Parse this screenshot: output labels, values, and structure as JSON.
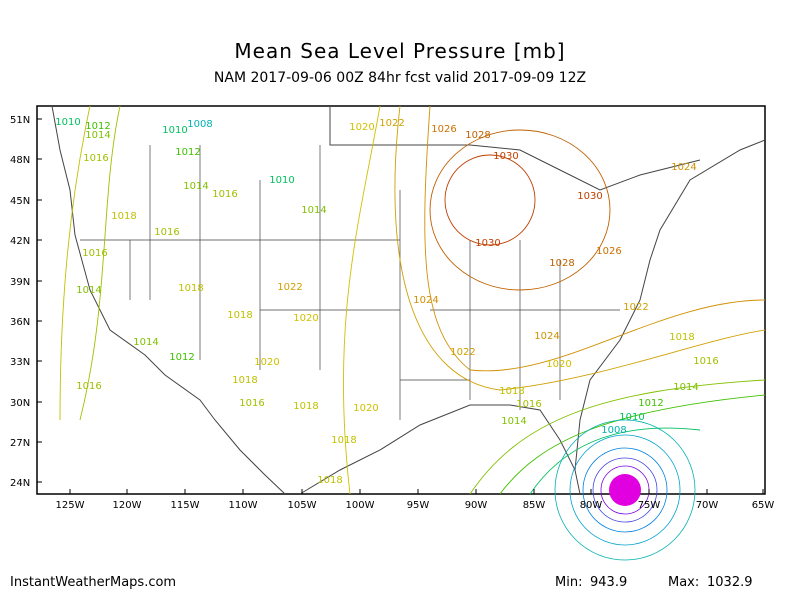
{
  "header": {
    "title": "Mean Sea Level Pressure [mb]",
    "subtitle": "NAM 2017-09-06 00Z 84hr fcst valid 2017-09-09 12Z"
  },
  "map": {
    "lat_labels": [
      "51N",
      "48N",
      "45N",
      "42N",
      "39N",
      "36N",
      "33N",
      "30N",
      "27N",
      "24N"
    ],
    "lon_labels": [
      "125W",
      "120W",
      "115W",
      "110W",
      "105W",
      "100W",
      "95W",
      "90W",
      "85W",
      "80W",
      "75W",
      "70W",
      "65W"
    ],
    "contour_labels": [
      1010,
      1012,
      1014,
      1010,
      1008,
      1016,
      1012,
      1010,
      1014,
      1016,
      1014,
      1020,
      1022,
      1026,
      1028,
      1030,
      1030,
      1024,
      1030,
      1028,
      1026,
      1022,
      1024,
      1022,
      1024,
      1020,
      1018,
      1016,
      1014,
      1012,
      1010,
      1008,
      1018,
      1016,
      1014,
      1020,
      1018,
      1018,
      1020,
      1020,
      1018,
      1016,
      1018,
      1014,
      1016,
      1014,
      1012,
      1016,
      1018,
      1016,
      1018,
      1018,
      1022
    ],
    "contour_colors": [
      "#00c060",
      "#40c000",
      "#80c000",
      "#00c060",
      "#00b0b0",
      "#a0c000",
      "#40c000",
      "#00c060",
      "#80c000",
      "#a0c000",
      "#80c000",
      "#d0c000",
      "#d0a000",
      "#d07000",
      "#c06000",
      "#c04000",
      "#c04000",
      "#d09000",
      "#c04000",
      "#c06000",
      "#d07000",
      "#d0a000",
      "#d09000",
      "#d0a000",
      "#d09000",
      "#d0c000",
      "#c0c000",
      "#a0c000",
      "#80c000",
      "#40c000",
      "#00c060",
      "#00b0b0",
      "#c0c000",
      "#a0c000",
      "#80c000",
      "#d0c000",
      "#c0c000",
      "#c0c000",
      "#d0c000",
      "#d0c000",
      "#c0c000",
      "#a0c000",
      "#c0c000",
      "#80c000",
      "#a0c000",
      "#80c000",
      "#40c000",
      "#a0c000",
      "#c0c000",
      "#a0c000",
      "#c0c000",
      "#c0c000",
      "#d0a000"
    ]
  },
  "footer": {
    "source": "InstantWeatherMaps.com",
    "min_label": "Min:",
    "min": 943.9,
    "max_label": "Max:",
    "max": 1032.9
  }
}
